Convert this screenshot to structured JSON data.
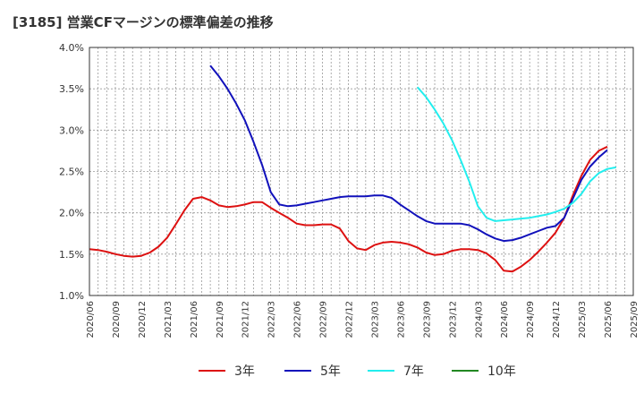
{
  "chart_data": {
    "type": "line",
    "title": "[3185]  営業CFマージンの標準偏差の推移",
    "xlabel": "",
    "ylabel": "",
    "ylim": [
      1.0,
      4.0
    ],
    "y_ticks": [
      "1.0%",
      "1.5%",
      "2.0%",
      "2.5%",
      "3.0%",
      "3.5%",
      "4.0%"
    ],
    "y_tick_values": [
      1.0,
      1.5,
      2.0,
      2.5,
      3.0,
      3.5,
      4.0
    ],
    "x_ticks": [
      "2020/06",
      "2020/09",
      "2020/12",
      "2021/03",
      "2021/06",
      "2021/09",
      "2021/12",
      "2022/03",
      "2022/06",
      "2022/09",
      "2022/12",
      "2023/03",
      "2023/06",
      "2023/09",
      "2023/12",
      "2024/03",
      "2024/06",
      "2024/09",
      "2024/12",
      "2025/03",
      "2025/06",
      "2025/09"
    ],
    "grid": true,
    "legend_position": "bottom",
    "series": [
      {
        "name": "3年",
        "color": "#dd1111",
        "start": "2020/06",
        "values": [
          1.56,
          1.55,
          1.53,
          1.5,
          1.48,
          1.47,
          1.48,
          1.52,
          1.59,
          1.7,
          1.86,
          2.03,
          2.17,
          2.19,
          2.15,
          2.09,
          2.07,
          2.08,
          2.1,
          2.13,
          2.13,
          2.06,
          2.0,
          1.94,
          1.87,
          1.85,
          1.85,
          1.86,
          1.86,
          1.81,
          1.66,
          1.57,
          1.55,
          1.61,
          1.64,
          1.65,
          1.64,
          1.62,
          1.58,
          1.52,
          1.49,
          1.5,
          1.54,
          1.56,
          1.56,
          1.55,
          1.51,
          1.43,
          1.3,
          1.29,
          1.35,
          1.43,
          1.53,
          1.64,
          1.76,
          1.94,
          2.21,
          2.45,
          2.64,
          2.75,
          2.8
        ]
      },
      {
        "name": "5年",
        "color": "#1111bb",
        "start": "2021/08",
        "values": [
          3.78,
          3.65,
          3.5,
          3.32,
          3.12,
          2.86,
          2.58,
          2.25,
          2.1,
          2.08,
          2.09,
          2.11,
          2.13,
          2.15,
          2.17,
          2.19,
          2.2,
          2.2,
          2.2,
          2.21,
          2.21,
          2.18,
          2.1,
          2.03,
          1.96,
          1.9,
          1.87,
          1.87,
          1.87,
          1.87,
          1.85,
          1.8,
          1.74,
          1.69,
          1.66,
          1.67,
          1.7,
          1.74,
          1.78,
          1.82,
          1.84,
          1.94,
          2.17,
          2.4,
          2.56,
          2.67,
          2.76
        ]
      },
      {
        "name": "7年",
        "color": "#22eeee",
        "start": "2023/08",
        "values": [
          3.52,
          3.4,
          3.25,
          3.08,
          2.88,
          2.64,
          2.38,
          2.08,
          1.94,
          1.9,
          1.91,
          1.92,
          1.93,
          1.94,
          1.96,
          1.98,
          2.01,
          2.05,
          2.12,
          2.23,
          2.38,
          2.48,
          2.53,
          2.55
        ]
      },
      {
        "name": "10年",
        "color": "#228822",
        "start": "2025/09",
        "values": []
      }
    ]
  }
}
